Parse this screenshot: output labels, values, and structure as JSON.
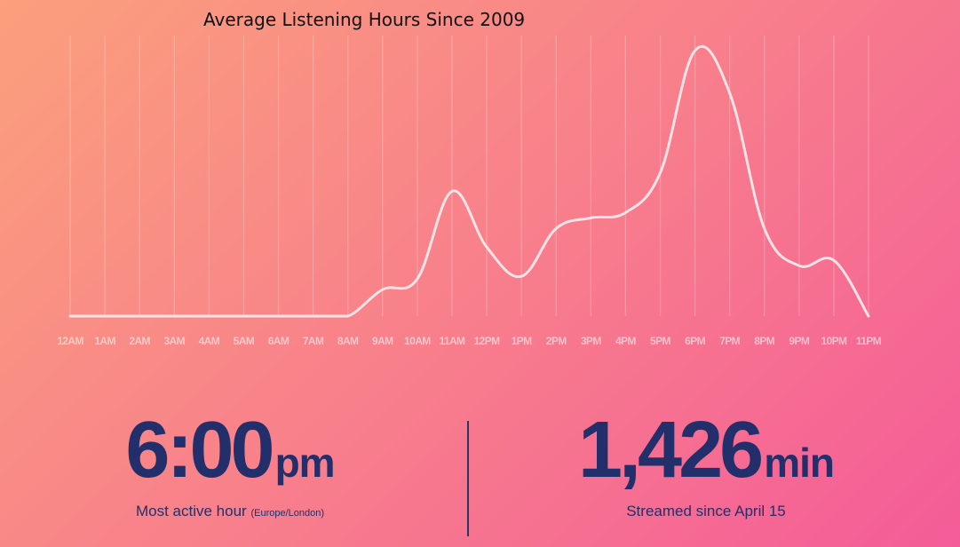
{
  "chart_data": {
    "type": "line",
    "title": "Average Listening Hours Since 2009",
    "xlabel": "",
    "ylabel": "",
    "grid": "vertical",
    "legend": "none",
    "categories": [
      "12AM",
      "1AM",
      "2AM",
      "3AM",
      "4AM",
      "5AM",
      "6AM",
      "7AM",
      "8AM",
      "9AM",
      "10AM",
      "11AM",
      "12PM",
      "1PM",
      "2PM",
      "3PM",
      "4PM",
      "5PM",
      "6PM",
      "7PM",
      "8PM",
      "9PM",
      "10PM",
      "11PM"
    ],
    "series": [
      {
        "values": [
          0,
          0,
          0,
          0,
          0,
          0,
          0,
          0,
          0,
          0.1,
          0.14,
          0.47,
          0.26,
          0.15,
          0.33,
          0.37,
          0.39,
          0.54,
          1.0,
          0.84,
          0.33,
          0.19,
          0.21,
          0
        ]
      }
    ],
    "ylim": [
      0,
      1.05
    ],
    "color": "#ffe3e6"
  },
  "stats": {
    "left": {
      "value": "6:00",
      "unit": "pm",
      "caption": "Most active hour",
      "caption_note": "(Europe/London)"
    },
    "right": {
      "value": "1,426",
      "unit": "min",
      "caption": "Streamed since April 15"
    }
  },
  "colors": {
    "accent_text": "#232f6a",
    "gradient_start": "#fb9f7c",
    "gradient_end": "#f45c98"
  }
}
